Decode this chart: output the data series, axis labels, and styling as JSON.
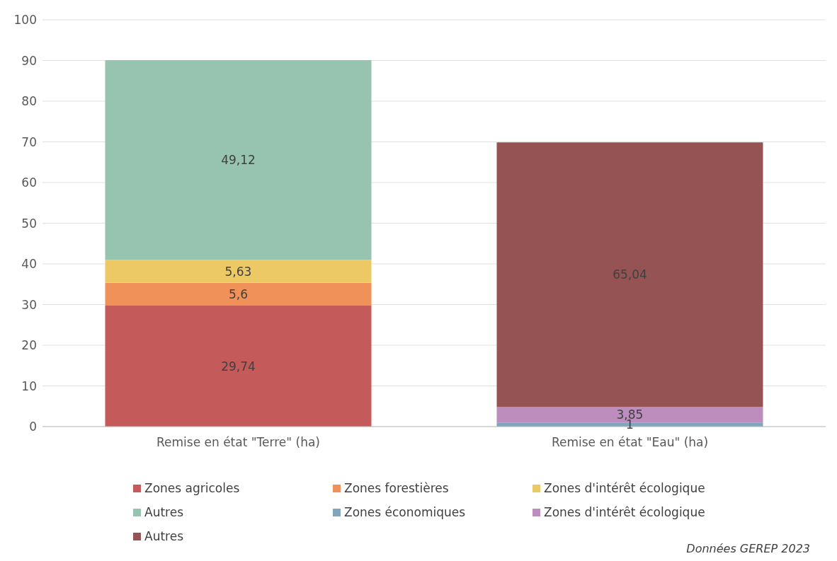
{
  "chart_data": {
    "type": "bar",
    "stacked": true,
    "categories": [
      "Remise en état \"Terre\" (ha)",
      "Remise en état \"Eau\" (ha)"
    ],
    "series": [
      {
        "name": "Zones agricoles",
        "color": "#c55a5a",
        "values": [
          29.74,
          null
        ],
        "value_labels": [
          "29,74",
          null
        ]
      },
      {
        "name": "Zones forestières",
        "color": "#ef9159",
        "values": [
          5.6,
          null
        ],
        "value_labels": [
          "5,6",
          null
        ]
      },
      {
        "name": "Zones d'intérêt écologique",
        "color": "#edc966",
        "values": [
          5.63,
          null
        ],
        "value_labels": [
          "5,63",
          null
        ]
      },
      {
        "name": "Autres",
        "color": "#97c4b0",
        "values": [
          49.12,
          null
        ],
        "value_labels": [
          "49,12",
          null
        ]
      },
      {
        "name": "Zones économiques",
        "color": "#7fa6bc",
        "values": [
          null,
          1
        ],
        "value_labels": [
          null,
          "1"
        ]
      },
      {
        "name": "Zones d'intérêt écologique",
        "color": "#bc8dbd",
        "values": [
          null,
          3.85
        ],
        "value_labels": [
          null,
          "3,85"
        ]
      },
      {
        "name": "Autres",
        "color": "#955353",
        "values": [
          null,
          65.04
        ],
        "value_labels": [
          null,
          "65,04"
        ]
      }
    ],
    "ylim": [
      0,
      100
    ],
    "yticks": [
      0,
      10,
      20,
      30,
      40,
      50,
      60,
      70,
      80,
      90,
      100
    ],
    "grid": "y",
    "legend": "bottom",
    "annotations": [
      "Données GEREP 2023"
    ]
  }
}
